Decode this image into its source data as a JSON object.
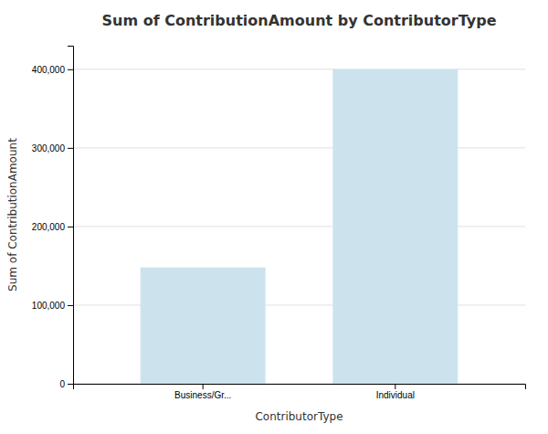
{
  "chart_data": {
    "type": "bar",
    "title": "Sum of ContributionAmount by ContributorType",
    "xlabel": "ContributorType",
    "ylabel": "Sum of ContributionAmount",
    "categories": [
      "Business/Gr...",
      "Individual"
    ],
    "values": [
      148000,
      400000
    ],
    "color": "#cce3ed",
    "ylim": [
      0,
      430000
    ],
    "yticks": [
      0,
      {
        "value": 100000,
        "label": "100,000"
      },
      {
        "value": 200000,
        "label": "200,000"
      },
      {
        "value": 300000,
        "label": "300,000"
      },
      {
        "value": 400000,
        "label": "400,000"
      }
    ],
    "grid": true
  }
}
